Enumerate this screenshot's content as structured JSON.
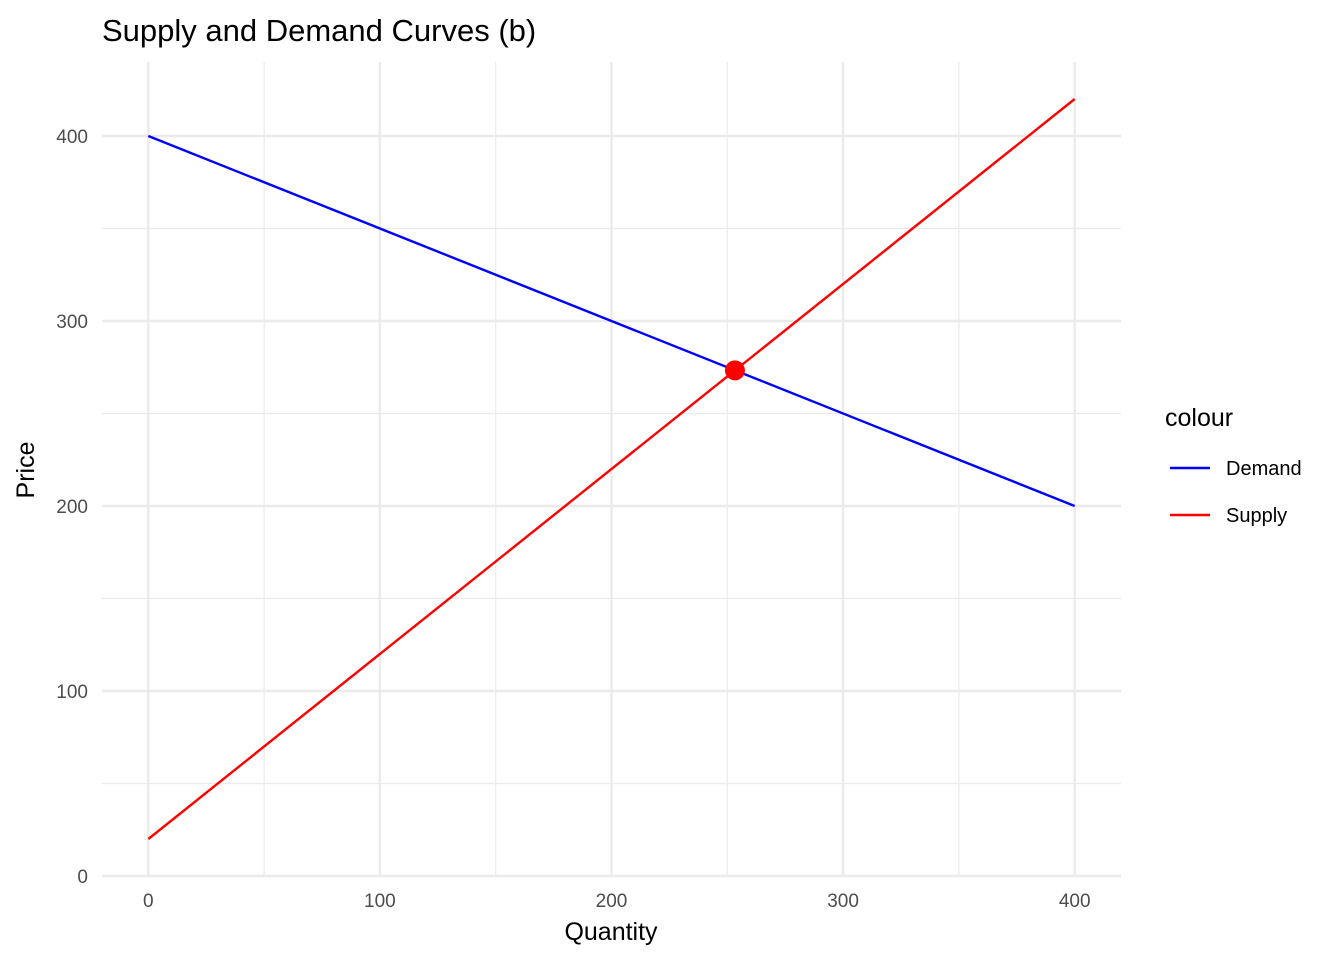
{
  "chart_data": {
    "type": "line",
    "title": "Supply and Demand Curves (b)",
    "xlabel": "Quantity",
    "ylabel": "Price",
    "xlim": [
      -20,
      420
    ],
    "ylim": [
      0,
      440
    ],
    "x_ticks": [
      0,
      100,
      200,
      300,
      400
    ],
    "y_ticks": [
      0,
      100,
      200,
      300,
      400
    ],
    "x_minor": [
      50,
      150,
      250,
      350
    ],
    "y_minor": [
      50,
      150,
      250,
      350
    ],
    "grid": true,
    "legend": {
      "title": "colour",
      "placement": "right",
      "entries": [
        {
          "label": "Demand",
          "color": "#0000ff"
        },
        {
          "label": "Supply",
          "color": "#ff0000"
        }
      ]
    },
    "series": [
      {
        "name": "Demand",
        "color": "#0000ff",
        "x": [
          0,
          400
        ],
        "y": [
          400,
          200
        ]
      },
      {
        "name": "Supply",
        "color": "#ff0000",
        "x": [
          0,
          400
        ],
        "y": [
          20,
          420
        ]
      }
    ],
    "points": [
      {
        "x": 253.3,
        "y": 273.3,
        "color": "#ff0000"
      }
    ]
  }
}
